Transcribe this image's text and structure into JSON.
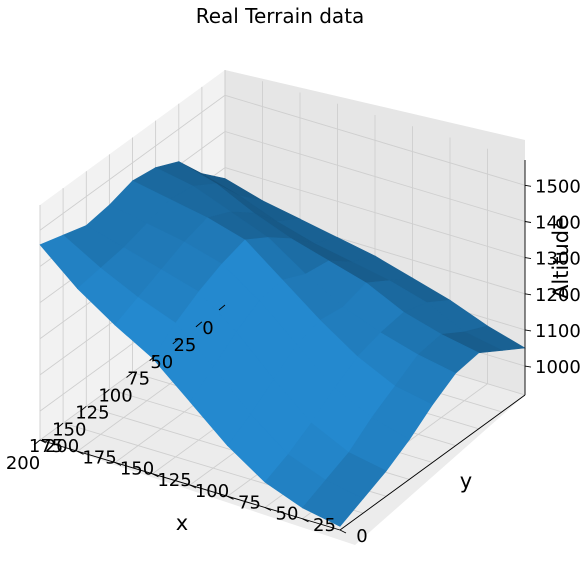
{
  "chart_data": {
    "type": "surface",
    "title": "Real Terrain data",
    "xlabel": "x",
    "ylabel": "y",
    "zlabel": "Altitude",
    "xlim": [
      0,
      200
    ],
    "ylim": [
      0,
      200
    ],
    "zlim": [
      920,
      1570
    ],
    "xticks": [
      "0",
      "25",
      "50",
      "75",
      "100",
      "125",
      "150",
      "175",
      "200"
    ],
    "yticks": [
      "0",
      "25",
      "50",
      "75",
      "100",
      "125",
      "150",
      "175",
      "200"
    ],
    "zticks": [
      "1000",
      "1100",
      "1200",
      "1300",
      "1400",
      "1500"
    ],
    "grid": true,
    "surface_color": "#1f77b4",
    "grid_x": [
      0,
      25,
      50,
      75,
      100,
      125,
      150,
      175,
      200
    ],
    "grid_y": [
      0,
      25,
      50,
      75,
      100,
      125,
      150,
      175,
      200
    ],
    "z": [
      [
        1050,
        1080,
        1120,
        1150,
        1180,
        1200,
        1220,
        1240,
        1270
      ],
      [
        1090,
        1110,
        1160,
        1190,
        1210,
        1230,
        1260,
        1300,
        1330
      ],
      [
        1130,
        1150,
        1180,
        1230,
        1260,
        1290,
        1330,
        1380,
        1410
      ],
      [
        1120,
        1140,
        1170,
        1210,
        1270,
        1340,
        1380,
        1420,
        1440
      ],
      [
        1080,
        1100,
        1150,
        1220,
        1300,
        1380,
        1410,
        1430,
        1450
      ],
      [
        1030,
        1060,
        1110,
        1200,
        1290,
        1360,
        1390,
        1410,
        1430
      ],
      [
        990,
        1010,
        1060,
        1150,
        1250,
        1330,
        1360,
        1390,
        1420
      ],
      [
        960,
        980,
        1020,
        1100,
        1200,
        1290,
        1330,
        1380,
        1440
      ],
      [
        930,
        950,
        990,
        1060,
        1150,
        1240,
        1300,
        1370,
        1460
      ]
    ]
  }
}
